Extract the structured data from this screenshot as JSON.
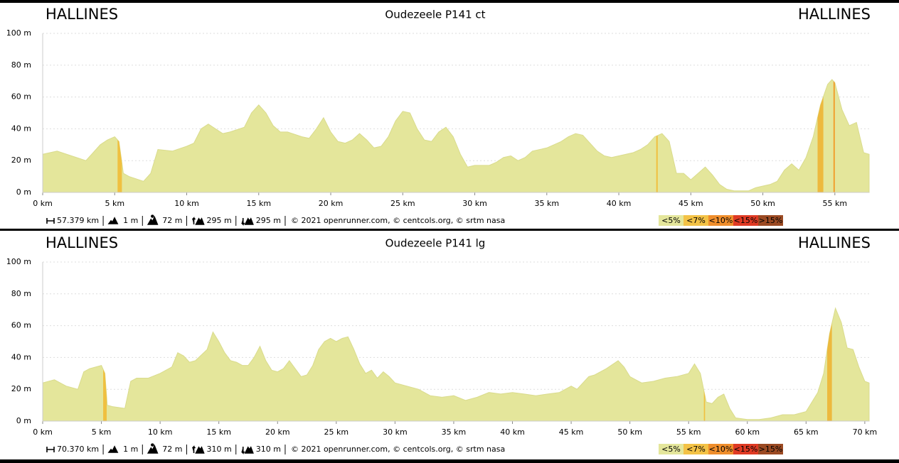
{
  "chart_data": [
    {
      "type": "area",
      "title": "Oudezeele P141 ct",
      "start_label": "HALLINES",
      "end_label": "HALLINES",
      "xlim": [
        0,
        57.379
      ],
      "ylim": [
        0,
        100
      ],
      "xticks": [
        {
          "value": 0,
          "label": "0 km"
        },
        {
          "value": 5,
          "label": "5 km"
        },
        {
          "value": 10,
          "label": "10 km"
        },
        {
          "value": 15,
          "label": "15 km"
        },
        {
          "value": 20,
          "label": "20 km"
        },
        {
          "value": 25,
          "label": "25 km"
        },
        {
          "value": 30,
          "label": "30 km"
        },
        {
          "value": 35,
          "label": "35 km"
        },
        {
          "value": 40,
          "label": "40 km"
        },
        {
          "value": 45,
          "label": "45 km"
        },
        {
          "value": 50,
          "label": "50 km"
        },
        {
          "value": 55,
          "label": "55 km"
        }
      ],
      "yticks": [
        {
          "value": 0,
          "label": "0 m"
        },
        {
          "value": 20,
          "label": "20 m"
        },
        {
          "value": 40,
          "label": "40 m"
        },
        {
          "value": 60,
          "label": "60 m"
        },
        {
          "value": 80,
          "label": "80 m"
        },
        {
          "value": 100,
          "label": "100 m"
        }
      ],
      "grid": true,
      "color": "#e4e69b",
      "x": [
        0,
        1,
        2,
        3,
        4,
        4.5,
        5,
        5.3,
        5.6,
        6,
        7,
        7.5,
        8,
        9,
        10,
        10.5,
        11,
        11.5,
        12,
        12.5,
        13,
        14,
        14.5,
        15,
        15.5,
        16,
        16.5,
        17,
        18,
        18.5,
        19,
        19.5,
        20,
        20.5,
        21,
        21.5,
        22,
        22.5,
        23,
        23.5,
        24,
        24.5,
        25,
        25.5,
        26,
        26.5,
        27,
        27.5,
        28,
        28.5,
        29,
        29.5,
        30,
        31,
        31.5,
        32,
        32.5,
        33,
        33.5,
        34,
        35,
        35.5,
        36,
        36.5,
        37,
        37.5,
        38,
        38.5,
        39,
        39.5,
        40,
        41,
        41.5,
        42,
        42.5,
        43,
        43.5,
        44,
        44.5,
        45,
        46,
        46.5,
        47,
        47.5,
        48,
        49,
        49.5,
        50,
        50.5,
        51,
        51.5,
        52,
        52.5,
        53,
        53.5,
        54,
        54.5,
        54.8,
        55,
        55.5,
        56,
        56.5,
        57,
        57.379
      ],
      "values": [
        24,
        26,
        23,
        20,
        30,
        33,
        35,
        32,
        12,
        10,
        7,
        12,
        27,
        26,
        29,
        31,
        40,
        43,
        40,
        37,
        38,
        41,
        50,
        55,
        50,
        42,
        38,
        38,
        35,
        34,
        40,
        47,
        38,
        32,
        31,
        33,
        37,
        33,
        28,
        29,
        35,
        45,
        51,
        50,
        40,
        33,
        32,
        38,
        41,
        35,
        24,
        16,
        17,
        17,
        19,
        22,
        23,
        20,
        22,
        26,
        28,
        30,
        32,
        35,
        37,
        36,
        31,
        26,
        23,
        22,
        23,
        25,
        27,
        30,
        35,
        37,
        32,
        12,
        12,
        8,
        16,
        11,
        5,
        2,
        1,
        1,
        3,
        4,
        5,
        7,
        14,
        18,
        14,
        22,
        35,
        55,
        68,
        71,
        69,
        52,
        42,
        44,
        25,
        24
      ],
      "highlights": [
        {
          "xrange": [
            5.2,
            5.5
          ],
          "color": "#f0c040"
        },
        {
          "xrange": [
            42.6,
            42.7
          ],
          "color": "#f0c040"
        },
        {
          "xrange": [
            53.8,
            54.2
          ],
          "color": "#edb93e"
        },
        {
          "xrange": [
            54.9,
            55.0
          ],
          "color": "#f0a030"
        }
      ],
      "stats": [
        "57.379 km",
        "1 m",
        "72 m",
        "295 m",
        "295 m",
        "© 2021 openrunner.com, © centcols.org, © srtm nasa"
      ],
      "legend": [
        {
          "label": "<5%",
          "color": "#e4e69b"
        },
        {
          "label": "<7%",
          "color": "#f3c246"
        },
        {
          "label": "<10%",
          "color": "#ef8e2c"
        },
        {
          "label": "<15%",
          "color": "#df3a24"
        },
        {
          "label": ">15%",
          "color": "#9b4a23"
        }
      ]
    },
    {
      "type": "area",
      "title": "Oudezeele P141 lg",
      "start_label": "HALLINES",
      "end_label": "HALLINES",
      "xlim": [
        0,
        70.37
      ],
      "ylim": [
        0,
        100
      ],
      "xticks": [
        {
          "value": 0,
          "label": "0 km"
        },
        {
          "value": 5,
          "label": "5 km"
        },
        {
          "value": 10,
          "label": "10 km"
        },
        {
          "value": 15,
          "label": "15 km"
        },
        {
          "value": 20,
          "label": "20 km"
        },
        {
          "value": 25,
          "label": "25 km"
        },
        {
          "value": 30,
          "label": "30 km"
        },
        {
          "value": 35,
          "label": "35 km"
        },
        {
          "value": 40,
          "label": "40 km"
        },
        {
          "value": 45,
          "label": "45 km"
        },
        {
          "value": 50,
          "label": "50 km"
        },
        {
          "value": 55,
          "label": "55 km"
        },
        {
          "value": 60,
          "label": "60 km"
        },
        {
          "value": 65,
          "label": "65 km"
        },
        {
          "value": 70,
          "label": "70 km"
        }
      ],
      "yticks": [
        {
          "value": 0,
          "label": "0 m"
        },
        {
          "value": 20,
          "label": "20 m"
        },
        {
          "value": 40,
          "label": "40 m"
        },
        {
          "value": 60,
          "label": "60 m"
        },
        {
          "value": 80,
          "label": "80 m"
        },
        {
          "value": 100,
          "label": "100 m"
        }
      ],
      "grid": true,
      "color": "#e4e69b",
      "x": [
        0,
        1,
        2,
        3,
        3.5,
        4,
        5,
        5.3,
        5.5,
        6,
        7,
        7.5,
        8,
        9,
        10,
        11,
        11.5,
        12,
        12.5,
        13,
        14,
        14.5,
        15,
        15.5,
        16,
        16.5,
        17,
        17.5,
        18,
        18.5,
        19,
        19.5,
        20,
        20.5,
        21,
        21.5,
        22,
        22.5,
        23,
        23.5,
        24,
        24.5,
        25,
        25.5,
        26,
        26.5,
        27,
        27.5,
        28,
        28.5,
        29,
        29.5,
        30,
        31,
        32,
        33,
        34,
        35,
        36,
        37,
        38,
        39,
        40,
        41,
        42,
        43,
        44,
        45,
        45.5,
        46,
        46.5,
        47,
        48,
        49,
        49.5,
        50,
        51,
        52,
        53,
        54,
        55,
        55.5,
        56,
        56.5,
        57,
        57.5,
        58,
        58.5,
        59,
        60,
        61,
        62,
        63,
        64,
        65,
        66,
        66.5,
        67,
        67.5,
        68,
        68.5,
        69,
        69.5,
        70,
        70.37
      ],
      "values": [
        24,
        26,
        22,
        20,
        31,
        33,
        35,
        30,
        10,
        9,
        8,
        25,
        27,
        27,
        30,
        34,
        43,
        41,
        37,
        38,
        45,
        56,
        50,
        43,
        38,
        37,
        35,
        35,
        40,
        47,
        38,
        32,
        31,
        33,
        38,
        33,
        28,
        29,
        35,
        45,
        50,
        52,
        50,
        52,
        53,
        45,
        36,
        30,
        32,
        27,
        31,
        28,
        24,
        22,
        20,
        16,
        15,
        16,
        13,
        15,
        18,
        17,
        18,
        17,
        16,
        17,
        18,
        22,
        20,
        24,
        28,
        29,
        33,
        38,
        34,
        28,
        24,
        25,
        27,
        28,
        30,
        36,
        30,
        12,
        11,
        15,
        17,
        8,
        2,
        1,
        1,
        2,
        4,
        4,
        6,
        18,
        30,
        55,
        71,
        62,
        46,
        45,
        34,
        25,
        24
      ],
      "highlights": [
        {
          "xrange": [
            5.15,
            5.45
          ],
          "color": "#f0c040"
        },
        {
          "xrange": [
            56.3,
            56.4
          ],
          "color": "#f0c040"
        },
        {
          "xrange": [
            66.8,
            67.2
          ],
          "color": "#edb93e"
        }
      ],
      "stats": [
        "70.370 km",
        "1 m",
        "72 m",
        "310 m",
        "310 m",
        "© 2021 openrunner.com, © centcols.org, © srtm nasa"
      ],
      "legend": [
        {
          "label": "<5%",
          "color": "#e4e69b"
        },
        {
          "label": "<7%",
          "color": "#f3c246"
        },
        {
          "label": "<10%",
          "color": "#ef8e2c"
        },
        {
          "label": "<15%",
          "color": "#df3a24"
        },
        {
          "label": ">15%",
          "color": "#9b4a23"
        }
      ]
    }
  ]
}
